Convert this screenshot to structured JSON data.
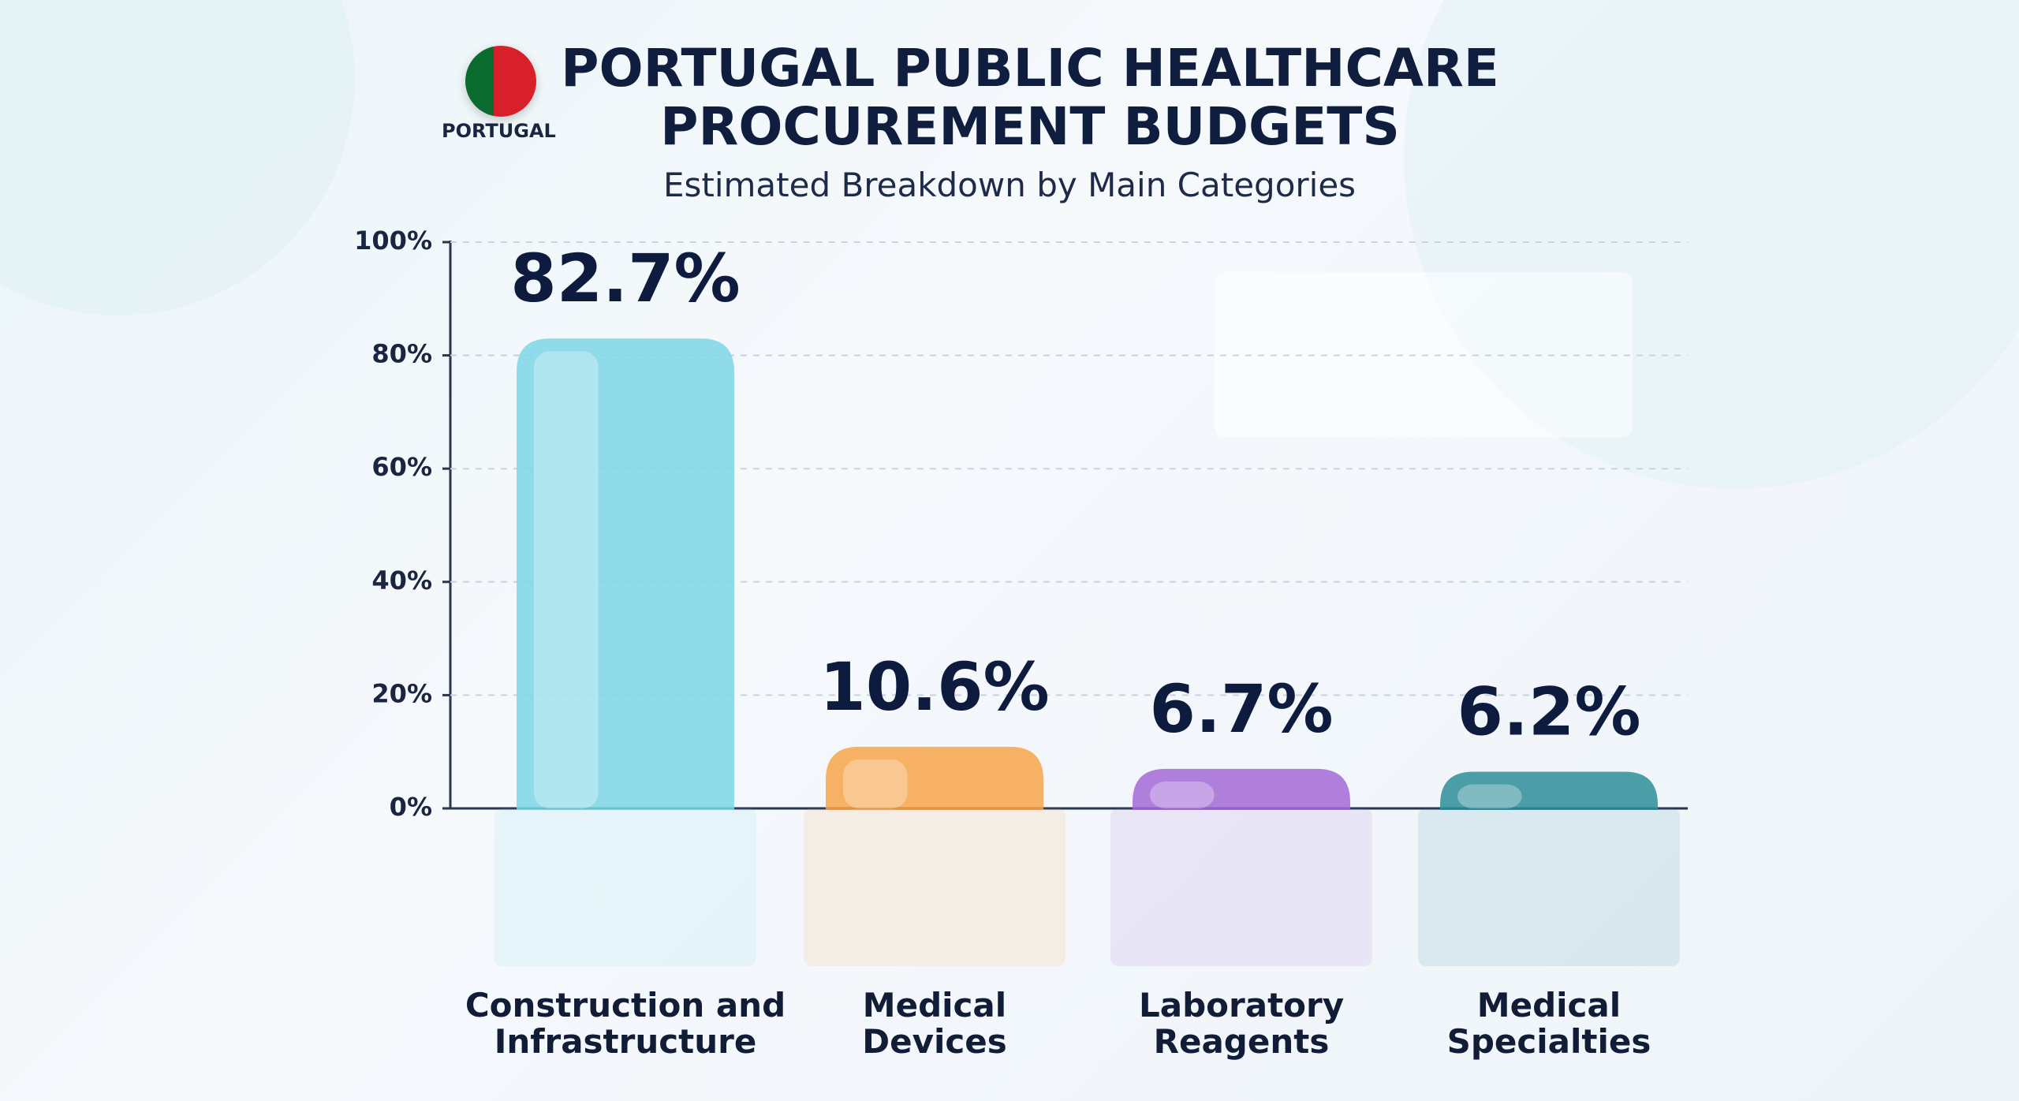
{
  "badge": "PORTUGAL",
  "chart_data": {
    "type": "bar",
    "title": "PORTUGAL PUBLIC HEALTHCARE PROCUREMENT BUDGETS",
    "subtitle": "Estimated Breakdown by Main Categories",
    "categories": [
      "Construction and Infrastructure",
      "Medical Devices",
      "Laboratory Reagents",
      "Medical Specialties"
    ],
    "values": [
      82.7,
      10.6,
      6.7,
      6.2
    ],
    "value_labels": [
      "82.7%",
      "10.6%",
      "6.7%",
      "6.2%"
    ],
    "colors": [
      "#7fd6e8",
      "#f7a54a",
      "#a46bd6",
      "#2f8f9a"
    ],
    "ylim": [
      0,
      100
    ],
    "yticks": [
      {
        "value": 0,
        "label": "0%"
      },
      {
        "value": 20,
        "label": "20%"
      },
      {
        "value": 40,
        "label": "40%"
      },
      {
        "value": 60,
        "label": "60%"
      },
      {
        "value": 80,
        "label": "80%"
      },
      {
        "value": 100,
        "label": "100%"
      }
    ],
    "grid": true
  }
}
